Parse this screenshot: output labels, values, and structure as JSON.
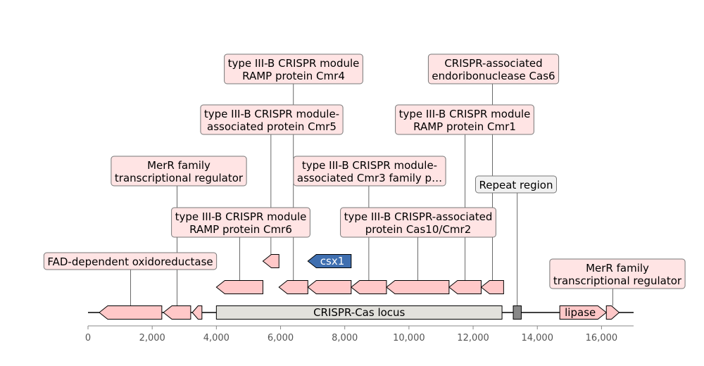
{
  "axis": {
    "min": 0,
    "max": 17000,
    "ticks": [
      {
        "value": 0,
        "label": "0"
      },
      {
        "value": 2000,
        "label": "2,000"
      },
      {
        "value": 4000,
        "label": "4,000"
      },
      {
        "value": 6000,
        "label": "6,000"
      },
      {
        "value": 8000,
        "label": "8,000"
      },
      {
        "value": 10000,
        "label": "10,000"
      },
      {
        "value": 12000,
        "label": "12,000"
      },
      {
        "value": 14000,
        "label": "14,000"
      },
      {
        "value": 16000,
        "label": "16,000"
      }
    ]
  },
  "colors": {
    "gene_fill": "#ffc8c8",
    "highlight_fill": "#3f6fb0",
    "locus_fill": "#e2e1dc",
    "repeat_fill": "#888888",
    "label_box": "#ffe4e4",
    "repeat_label_box": "#f1f1f1"
  },
  "locus": {
    "start": 4000,
    "end": 12900,
    "label": "CRISPR-Cas locus"
  },
  "repeat_feature": {
    "start": 13250,
    "end": 13500
  },
  "features": [
    {
      "id": "fad",
      "start": 350,
      "end": 2300,
      "strand": -1,
      "track": 0,
      "label": "FAD-dependent oxidoreductase",
      "inline": ""
    },
    {
      "id": "merr1",
      "start": 2350,
      "end": 3200,
      "strand": -1,
      "track": 0,
      "label": "MerR family\ntranscriptional regulator",
      "inline": ""
    },
    {
      "id": "small1",
      "start": 3250,
      "end": 3550,
      "strand": -1,
      "track": 0,
      "label": "",
      "inline": ""
    },
    {
      "id": "cmr6",
      "start": 4000,
      "end": 5450,
      "strand": -1,
      "track": 1,
      "label": "type III-B CRISPR module\nRAMP protein Cmr6",
      "inline": ""
    },
    {
      "id": "cmr5",
      "start": 5450,
      "end": 5950,
      "strand": -1,
      "track": 2,
      "label": "type III-B CRISPR module-\nassociated protein Cmr5",
      "inline": ""
    },
    {
      "id": "cmr4",
      "start": 5950,
      "end": 6850,
      "strand": -1,
      "track": 1,
      "label": "type III-B CRISPR module\nRAMP protein Cmr4",
      "inline": ""
    },
    {
      "id": "csx1",
      "start": 6850,
      "end": 8200,
      "strand": -1,
      "track": 2,
      "label": "",
      "inline": "csx1"
    },
    {
      "id": "g8",
      "start": 6850,
      "end": 8200,
      "strand": -1,
      "track": 1,
      "label": "",
      "inline": ""
    },
    {
      "id": "cmr3",
      "start": 8200,
      "end": 9300,
      "strand": -1,
      "track": 1,
      "label": "type III-B CRISPR module-\nassociated Cmr3 family p…",
      "inline": ""
    },
    {
      "id": "cas10",
      "start": 9300,
      "end": 11250,
      "strand": -1,
      "track": 1,
      "label": "type III-B CRISPR-associated\nprotein Cas10/Cmr2",
      "inline": ""
    },
    {
      "id": "cmr1",
      "start": 11250,
      "end": 12250,
      "strand": -1,
      "track": 1,
      "label": "type III-B CRISPR module\nRAMP protein Cmr1",
      "inline": ""
    },
    {
      "id": "cas6",
      "start": 12250,
      "end": 12950,
      "strand": -1,
      "track": 1,
      "label": "CRISPR-associated\nendoribonuclease Cas6",
      "inline": ""
    },
    {
      "id": "lipase",
      "start": 14700,
      "end": 16150,
      "strand": 1,
      "track": 0,
      "label": "",
      "inline": "lipase"
    },
    {
      "id": "merr2",
      "start": 16150,
      "end": 16550,
      "strand": 1,
      "track": 0,
      "label": "MerR family\ntranscriptional regulator",
      "inline": ""
    }
  ],
  "annotations": [
    {
      "feature": "fad",
      "text": "FAD-dependent oxidoreductase"
    },
    {
      "feature": "merr1",
      "text": "MerR family\ntranscriptional regulator"
    },
    {
      "feature": "cmr6",
      "text": "type III-B CRISPR module\nRAMP protein Cmr6"
    },
    {
      "feature": "cmr5",
      "text": "type III-B CRISPR module-\nassociated protein Cmr5"
    },
    {
      "feature": "cmr4",
      "text": "type III-B CRISPR module\nRAMP protein Cmr4"
    },
    {
      "feature": "cmr3",
      "text": "type III-B CRISPR module-\nassociated Cmr3 family p…"
    },
    {
      "feature": "cas10",
      "text": "type III-B CRISPR-associated\nprotein Cas10/Cmr2"
    },
    {
      "feature": "cmr1",
      "text": "type III-B CRISPR module\nRAMP protein Cmr1"
    },
    {
      "feature": "cas6",
      "text": "CRISPR-associated\nendoribonuclease Cas6"
    },
    {
      "feature": "repeat",
      "text": "Repeat region"
    },
    {
      "feature": "merr2",
      "text": "MerR family\ntranscriptional regulator"
    }
  ]
}
